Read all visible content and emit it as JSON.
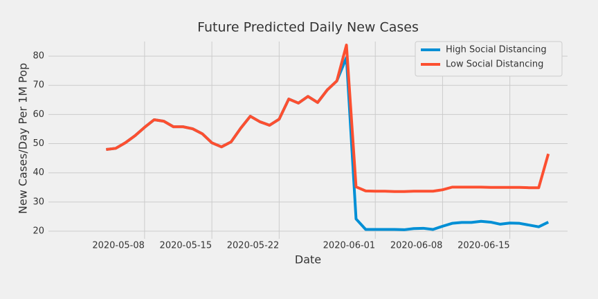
{
  "chart_data": {
    "type": "line",
    "title": "Future Predicted Daily New Cases",
    "xlabel": "Date",
    "ylabel": "New Cases/Day Per 1M Pop",
    "x": [
      "2020-05-04",
      "2020-05-05",
      "2020-05-06",
      "2020-05-07",
      "2020-05-08",
      "2020-05-09",
      "2020-05-10",
      "2020-05-11",
      "2020-05-12",
      "2020-05-13",
      "2020-05-14",
      "2020-05-15",
      "2020-05-16",
      "2020-05-17",
      "2020-05-18",
      "2020-05-19",
      "2020-05-20",
      "2020-05-21",
      "2020-05-22",
      "2020-05-23",
      "2020-05-24",
      "2020-05-25",
      "2020-05-26",
      "2020-05-27",
      "2020-05-28",
      "2020-05-29",
      "2020-05-30",
      "2020-05-31",
      "2020-06-01",
      "2020-06-02",
      "2020-06-03",
      "2020-06-04",
      "2020-06-05",
      "2020-06-06",
      "2020-06-07",
      "2020-06-08",
      "2020-06-09",
      "2020-06-10",
      "2020-06-11",
      "2020-06-12",
      "2020-06-13",
      "2020-06-14",
      "2020-06-15",
      "2020-06-16",
      "2020-06-17",
      "2020-06-18",
      "2020-06-19"
    ],
    "series": [
      {
        "name": "High Social Distancing",
        "color": "#008fd5",
        "values": [
          48.0,
          48.4,
          50.3,
          52.7,
          55.6,
          58.2,
          57.7,
          55.8,
          55.8,
          55.1,
          53.4,
          50.3,
          48.9,
          50.6,
          55.3,
          59.4,
          57.5,
          56.3,
          58.4,
          65.3,
          63.9,
          66.2,
          64.1,
          68.4,
          71.5,
          79.5,
          24.2,
          20.6,
          20.6,
          20.6,
          20.6,
          20.5,
          20.9,
          21.0,
          20.6,
          21.7,
          22.7,
          23.0,
          23.0,
          23.4,
          23.1,
          22.4,
          22.8,
          22.7,
          22.1,
          21.5,
          23.1
        ]
      },
      {
        "name": "Low Social Distancing",
        "color": "#fc4f30",
        "values": [
          48.0,
          48.4,
          50.3,
          52.7,
          55.6,
          58.2,
          57.7,
          55.8,
          55.8,
          55.1,
          53.4,
          50.3,
          48.9,
          50.6,
          55.3,
          59.4,
          57.5,
          56.3,
          58.4,
          65.3,
          63.9,
          66.2,
          64.1,
          68.4,
          71.5,
          83.8,
          35.2,
          33.8,
          33.7,
          33.7,
          33.6,
          33.6,
          33.7,
          33.7,
          33.7,
          34.2,
          35.1,
          35.1,
          35.1,
          35.1,
          35.0,
          35.0,
          35.0,
          35.0,
          34.9,
          34.9,
          46.5
        ]
      }
    ],
    "xlim": [
      "2020-04-28",
      "2020-06-21"
    ],
    "xticks": [
      "2020-05-08",
      "2020-05-15",
      "2020-05-22",
      "2020-06-01",
      "2020-06-08",
      "2020-06-15"
    ],
    "ylim": [
      17.4,
      85
    ],
    "yticks": [
      20,
      30,
      40,
      50,
      60,
      70,
      80
    ],
    "grid": true,
    "legend": "upper right"
  }
}
